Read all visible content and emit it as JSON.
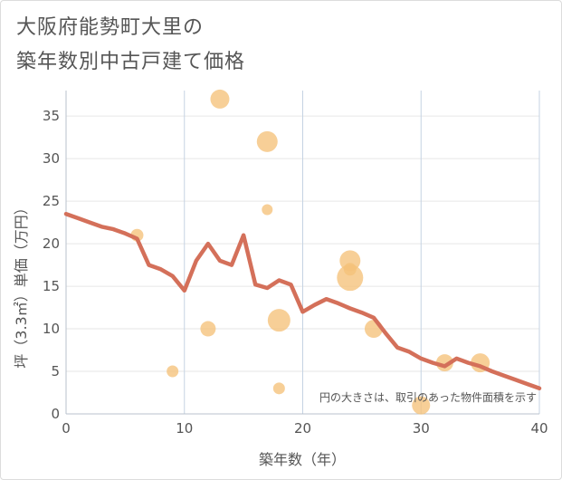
{
  "title_line1": "大阪府能勢町大里の",
  "title_line2": "築年数別中古戸建て価格",
  "chart_data": {
    "type": "scatter",
    "title": "大阪府能勢町大里の築年数別中古戸建て価格",
    "xlabel": "築年数（年）",
    "ylabel": "坪（3.3㎡）単価（万円）",
    "xlim": [
      0,
      40
    ],
    "ylim": [
      0,
      38
    ],
    "x_ticks": [
      0,
      10,
      20,
      30,
      40
    ],
    "y_ticks": [
      0,
      5,
      10,
      15,
      20,
      25,
      30,
      35
    ],
    "grid": true,
    "note": "円の大きさは、取引のあった物件面積を示す",
    "colors": {
      "bubble": "#f5c27a",
      "line": "#d4705a"
    },
    "points": [
      {
        "x": 6,
        "y": 21,
        "size": 14
      },
      {
        "x": 9,
        "y": 5,
        "size": 13
      },
      {
        "x": 12,
        "y": 10,
        "size": 17
      },
      {
        "x": 13,
        "y": 37,
        "size": 21
      },
      {
        "x": 17,
        "y": 32,
        "size": 23
      },
      {
        "x": 17,
        "y": 24,
        "size": 12
      },
      {
        "x": 18,
        "y": 11,
        "size": 25
      },
      {
        "x": 18,
        "y": 3,
        "size": 13
      },
      {
        "x": 24,
        "y": 18,
        "size": 23
      },
      {
        "x": 24,
        "y": 17,
        "size": 14
      },
      {
        "x": 24,
        "y": 16,
        "size": 29
      },
      {
        "x": 26,
        "y": 10,
        "size": 20
      },
      {
        "x": 30,
        "y": 1,
        "size": 20
      },
      {
        "x": 32,
        "y": 6,
        "size": 19
      },
      {
        "x": 35,
        "y": 6,
        "size": 21
      }
    ],
    "line": {
      "x": [
        0,
        1,
        2,
        3,
        4,
        5,
        6,
        7,
        8,
        9,
        10,
        11,
        12,
        13,
        14,
        15,
        16,
        17,
        18,
        19,
        20,
        21,
        22,
        23,
        24,
        25,
        26,
        27,
        28,
        29,
        30,
        31,
        32,
        33,
        34,
        35,
        36,
        37,
        38,
        39,
        40
      ],
      "y": [
        23.5,
        23,
        22.5,
        22,
        21.7,
        21.2,
        20.6,
        17.5,
        17,
        16.2,
        14.5,
        18,
        20,
        18,
        17.5,
        21,
        15.2,
        14.8,
        15.7,
        15.2,
        12,
        12.8,
        13.5,
        13,
        12.4,
        11.9,
        11.3,
        9.5,
        7.8,
        7.3,
        6.5,
        6,
        5.6,
        6.5,
        6,
        5.6,
        5,
        4.5,
        4,
        3.5,
        3
      ]
    }
  }
}
